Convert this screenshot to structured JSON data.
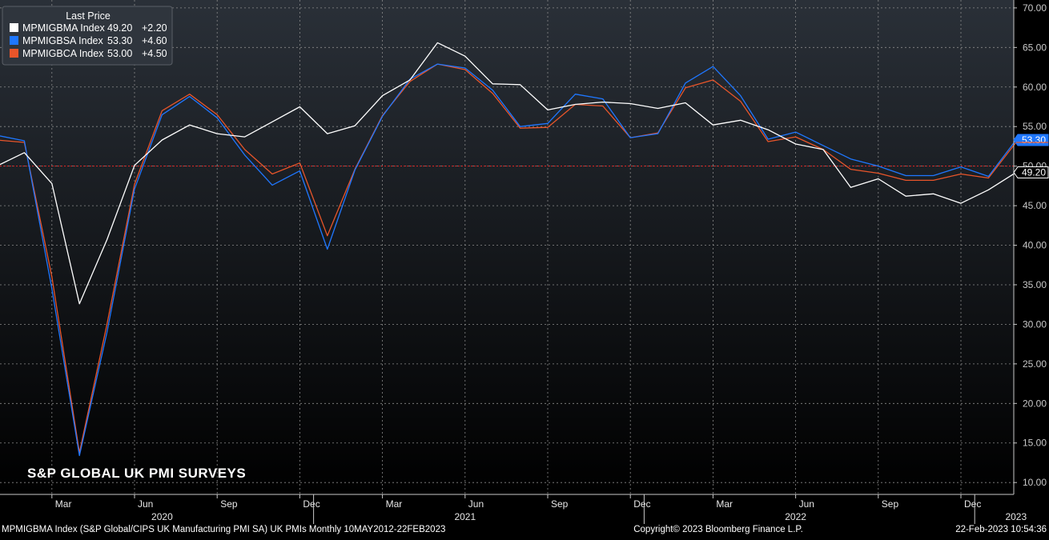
{
  "legend": {
    "header": "Last Price",
    "entries": [
      {
        "ticker": "MPMIGBMA Index",
        "last": "49.20",
        "change": "+2.20",
        "color": "#ffffff"
      },
      {
        "ticker": "MPMIGBSA Index",
        "last": "53.30",
        "change": "+4.60",
        "color": "#1f77ff"
      },
      {
        "ticker": "MPMIGBCA Index",
        "last": "53.00",
        "change": "+4.50",
        "color": "#e8552a"
      }
    ]
  },
  "overlay_title": "S&P GLOBAL UK PMI SURVEYS",
  "footer": {
    "left": "MPMIGBMA Index (S&P Global/CIPS UK Manufacturing PMI SA) UK PMIs  Monthly 10MAY2012-22FEB2023",
    "center": "Copyright© 2023 Bloomberg Finance L.P.",
    "right": "22-Feb-2023 10:54:36"
  },
  "colors": {
    "background_top": "#2a3038",
    "background_bottom": "#000000",
    "grid": "#8a8a8a",
    "reference_line": "#e02020",
    "manufacturing": "#ffffff",
    "services": "#1f77ff",
    "composite": "#e8552a"
  },
  "chart_data": {
    "type": "line",
    "x": [
      "2020-01",
      "2020-02",
      "2020-03",
      "2020-04",
      "2020-05",
      "2020-06",
      "2020-07",
      "2020-08",
      "2020-09",
      "2020-10",
      "2020-11",
      "2020-12",
      "2021-01",
      "2021-02",
      "2021-03",
      "2021-04",
      "2021-05",
      "2021-06",
      "2021-07",
      "2021-08",
      "2021-09",
      "2021-10",
      "2021-11",
      "2021-12",
      "2022-01",
      "2022-02",
      "2022-03",
      "2022-04",
      "2022-05",
      "2022-06",
      "2022-07",
      "2022-08",
      "2022-09",
      "2022-10",
      "2022-11",
      "2022-12",
      "2023-01",
      "2023-02"
    ],
    "series": [
      {
        "name": "MPMIGBMA Index",
        "color": "#ffffff",
        "values": [
          50.0,
          51.7,
          47.8,
          32.6,
          40.7,
          50.1,
          53.3,
          55.2,
          54.1,
          53.7,
          55.6,
          57.5,
          54.1,
          55.1,
          58.9,
          60.9,
          65.6,
          63.9,
          60.4,
          60.3,
          57.1,
          57.8,
          58.1,
          57.9,
          57.3,
          58.0,
          55.2,
          55.8,
          54.6,
          52.8,
          52.1,
          47.3,
          48.4,
          46.2,
          46.5,
          45.3,
          47.0,
          49.2
        ]
      },
      {
        "name": "MPMIGBSA Index",
        "color": "#1f77ff",
        "values": [
          53.9,
          53.2,
          34.5,
          13.4,
          29.0,
          47.1,
          56.5,
          58.8,
          56.1,
          51.4,
          47.6,
          49.4,
          39.5,
          49.5,
          56.3,
          61.0,
          62.9,
          62.4,
          59.6,
          55.0,
          55.4,
          59.1,
          58.5,
          53.6,
          54.1,
          60.5,
          62.6,
          58.9,
          53.4,
          54.3,
          52.6,
          50.9,
          50.0,
          48.8,
          48.8,
          49.9,
          48.7,
          53.3
        ]
      },
      {
        "name": "MPMIGBCA Index",
        "color": "#e8552a",
        "values": [
          53.3,
          53.0,
          36.0,
          13.8,
          30.0,
          47.7,
          57.0,
          59.1,
          56.5,
          52.1,
          49.0,
          50.4,
          41.2,
          49.6,
          56.4,
          60.7,
          62.9,
          62.2,
          59.2,
          54.8,
          54.9,
          57.8,
          57.6,
          53.6,
          54.2,
          59.9,
          60.9,
          58.2,
          53.1,
          53.7,
          52.1,
          49.6,
          49.1,
          48.2,
          48.2,
          49.0,
          48.5,
          53.0
        ]
      }
    ],
    "y_axis": {
      "position": "right",
      "ylim": [
        8.5,
        71.0
      ],
      "tick_labels": [
        "10.00",
        "15.00",
        "20.00",
        "25.00",
        "30.00",
        "35.00",
        "40.00",
        "45.00",
        "50.00",
        "55.00",
        "60.00",
        "65.00",
        "70.00"
      ]
    },
    "x_axis": {
      "month_ticks": [
        {
          "label": "Mar",
          "x": "2020-03"
        },
        {
          "label": "Jun",
          "x": "2020-06"
        },
        {
          "label": "Sep",
          "x": "2020-09"
        },
        {
          "label": "Dec",
          "x": "2020-12"
        },
        {
          "label": "Mar",
          "x": "2021-03"
        },
        {
          "label": "Jun",
          "x": "2021-06"
        },
        {
          "label": "Sep",
          "x": "2021-09"
        },
        {
          "label": "Dec",
          "x": "2021-12"
        },
        {
          "label": "Mar",
          "x": "2022-03"
        },
        {
          "label": "Jun",
          "x": "2022-06"
        },
        {
          "label": "Sep",
          "x": "2022-09"
        },
        {
          "label": "Dec",
          "x": "2022-12"
        }
      ],
      "year_labels": [
        {
          "label": "2020",
          "x": "2020-07"
        },
        {
          "label": "2021",
          "x": "2021-06"
        },
        {
          "label": "2022",
          "x": "2022-06"
        },
        {
          "label": "2023",
          "x": "2023-02"
        }
      ]
    },
    "reference_line": 50.0,
    "price_tags": [
      {
        "label": "53.30",
        "value": 53.3,
        "series": "MPMIGBSA Index"
      },
      {
        "label": "49.20",
        "value": 49.2,
        "series": "MPMIGBMA Index"
      }
    ],
    "grid": true,
    "legend_position": "top-left"
  }
}
